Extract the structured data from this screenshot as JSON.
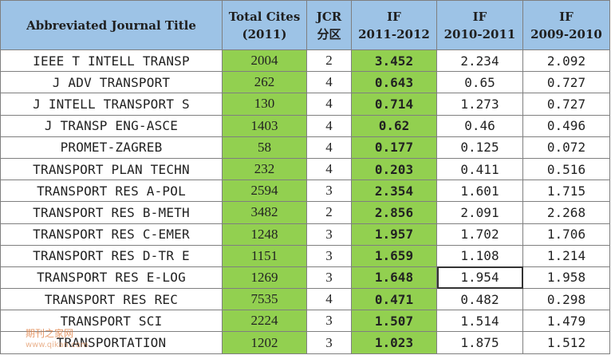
{
  "headers": {
    "title": "Abbreviated Journal Title",
    "cites_line1": "Total Cites",
    "cites_line2": "(2011)",
    "jcr_line1": "JCR",
    "jcr_line2": "分区",
    "if1_line1": "IF",
    "if1_line2": "2011-2012",
    "if2_line1": "IF",
    "if2_line2": "2010-2011",
    "if3_line1": "IF",
    "if3_line2": "2009-2010"
  },
  "rows": [
    {
      "title": "IEEE T INTELL TRANSP",
      "cites": "2004",
      "jcr": "2",
      "if_2011_2012": "3.452",
      "if_2010_2011": "2.234",
      "if_2009_2010": "2.092"
    },
    {
      "title": "J ADV TRANSPORT",
      "cites": "262",
      "jcr": "4",
      "if_2011_2012": "0.643",
      "if_2010_2011": "0.65",
      "if_2009_2010": "0.727"
    },
    {
      "title": "J INTELL TRANSPORT S",
      "cites": "130",
      "jcr": "4",
      "if_2011_2012": "0.714",
      "if_2010_2011": "1.273",
      "if_2009_2010": "0.727"
    },
    {
      "title": "J TRANSP ENG-ASCE",
      "cites": "1403",
      "jcr": "4",
      "if_2011_2012": "0.62",
      "if_2010_2011": "0.46",
      "if_2009_2010": "0.496"
    },
    {
      "title": "PROMET-ZAGREB",
      "cites": "58",
      "jcr": "4",
      "if_2011_2012": "0.177",
      "if_2010_2011": "0.125",
      "if_2009_2010": "0.072"
    },
    {
      "title": "TRANSPORT PLAN TECHN",
      "cites": "232",
      "jcr": "4",
      "if_2011_2012": "0.203",
      "if_2010_2011": "0.411",
      "if_2009_2010": "0.516"
    },
    {
      "title": "TRANSPORT RES A-POL",
      "cites": "2594",
      "jcr": "3",
      "if_2011_2012": "2.354",
      "if_2010_2011": "1.601",
      "if_2009_2010": "1.715"
    },
    {
      "title": "TRANSPORT RES B-METH",
      "cites": "3482",
      "jcr": "2",
      "if_2011_2012": "2.856",
      "if_2010_2011": "2.091",
      "if_2009_2010": "2.268"
    },
    {
      "title": "TRANSPORT RES C-EMER",
      "cites": "1248",
      "jcr": "3",
      "if_2011_2012": "1.957",
      "if_2010_2011": "1.702",
      "if_2009_2010": "1.706"
    },
    {
      "title": "TRANSPORT RES D-TR E",
      "cites": "1151",
      "jcr": "3",
      "if_2011_2012": "1.659",
      "if_2010_2011": "1.108",
      "if_2009_2010": "1.214"
    },
    {
      "title": "TRANSPORT RES E-LOG",
      "cites": "1269",
      "jcr": "3",
      "if_2011_2012": "1.648",
      "if_2010_2011": "1.954",
      "if_2009_2010": "1.958"
    },
    {
      "title": "TRANSPORT RES REC",
      "cites": "7535",
      "jcr": "4",
      "if_2011_2012": "0.471",
      "if_2010_2011": "0.482",
      "if_2009_2010": "0.298"
    },
    {
      "title": "TRANSPORT SCI",
      "cites": "2224",
      "jcr": "3",
      "if_2011_2012": "1.507",
      "if_2010_2011": "1.514",
      "if_2009_2010": "1.479"
    },
    {
      "title": "TRANSPORTATION",
      "cites": "1202",
      "jcr": "3",
      "if_2011_2012": "1.023",
      "if_2010_2011": "1.875",
      "if_2009_2010": "1.512"
    }
  ],
  "selected_cell": {
    "row": 10,
    "column": "if_2010_2011"
  },
  "watermark": {
    "text": "期刊之家网",
    "url": "www.qikan.com"
  },
  "colors": {
    "header_bg": "#9dc3e6",
    "highlight_green": "#92d050",
    "border": "#7f7f7f"
  }
}
